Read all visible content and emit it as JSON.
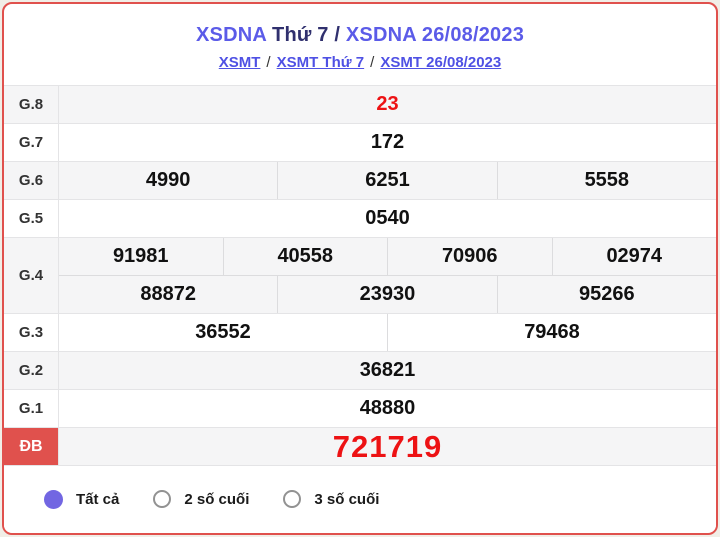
{
  "header": {
    "title": {
      "part1": "XSDNA",
      "part2": " Thứ 7 / ",
      "part3": "XSDNA 26/08/2023"
    },
    "breadcrumb": {
      "links": [
        "XSMT",
        "XSMT Thứ 7",
        "XSMT 26/08/2023"
      ],
      "separator": "/"
    }
  },
  "results": {
    "rows": [
      {
        "label": "G.8",
        "cells": [
          "23"
        ]
      },
      {
        "label": "G.7",
        "cells": [
          "172"
        ]
      },
      {
        "label": "G.6",
        "cells": [
          "4990",
          "6251",
          "5558"
        ]
      },
      {
        "label": "G.5",
        "cells": [
          "0540"
        ]
      },
      {
        "label": "G.4",
        "subrows": [
          [
            "91981",
            "40558",
            "70906",
            "02974"
          ],
          [
            "88872",
            "23930",
            "95266"
          ]
        ]
      },
      {
        "label": "G.3",
        "cells": [
          "36552",
          "79468"
        ]
      },
      {
        "label": "G.2",
        "cells": [
          "36821"
        ]
      },
      {
        "label": "G.1",
        "cells": [
          "48880"
        ]
      },
      {
        "label": "ĐB",
        "cells": [
          "721719"
        ]
      }
    ]
  },
  "footer": {
    "options": [
      {
        "label": "Tất cả",
        "selected": true
      },
      {
        "label": "2 số cuối",
        "selected": false
      },
      {
        "label": "3 số cuối",
        "selected": false
      }
    ]
  },
  "colors": {
    "accent_red": "#e0514d",
    "prize_red": "#ed1214",
    "link_indigo": "#4f51e4",
    "title_indigo": "#5b5be8",
    "title_navy": "#30306e",
    "radio_selected": "#7266e2",
    "row_shade": "#f5f5f6"
  }
}
